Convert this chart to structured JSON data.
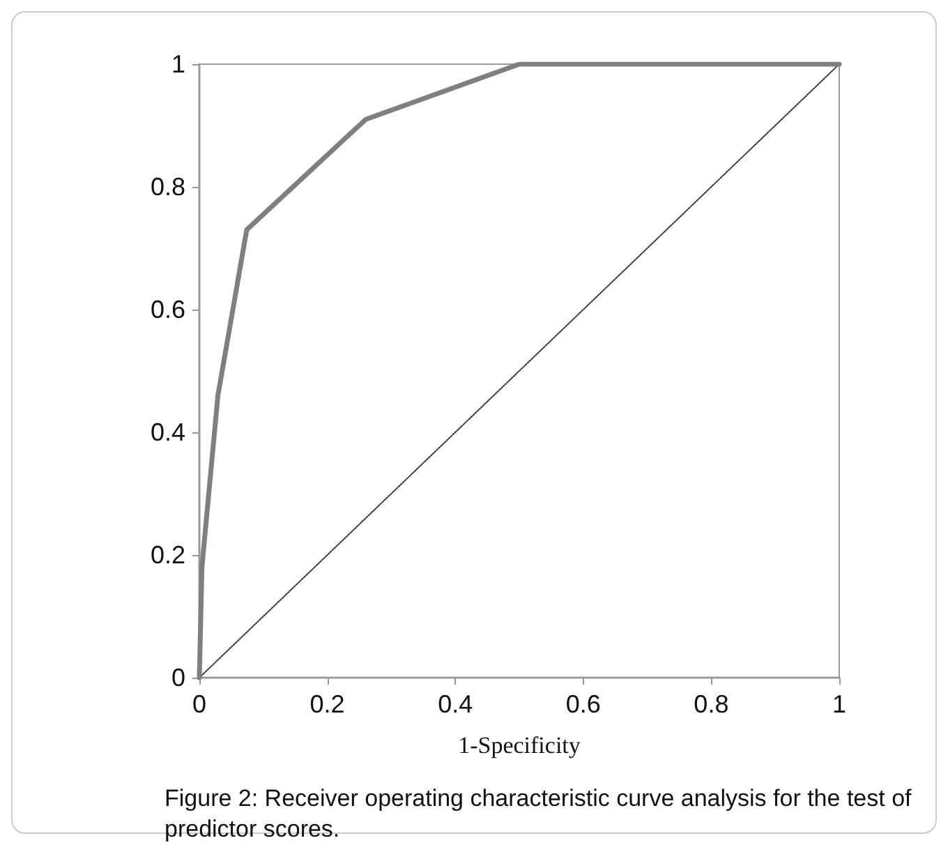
{
  "chart_data": {
    "type": "line",
    "xlabel": "1-Specificity",
    "annotations": [
      "Figure 2: Receiver operating characteristic curve analysis for the test of predictor scores."
    ],
    "xlim": [
      0,
      1
    ],
    "xticks": [
      0,
      0.2,
      0.4,
      0.6,
      0.8,
      1
    ],
    "ylim": [
      0,
      1
    ],
    "yticks": [
      0,
      0.2,
      0.4,
      0.6,
      0.8,
      1
    ],
    "grid": false,
    "marker": "none",
    "series": [
      {
        "color": "#7f7f7f",
        "line_style": "solid",
        "x": [
          0,
          0.004,
          0.029,
          0.074,
          0.26,
          0.5,
          1
        ],
        "values": [
          0,
          0.18,
          0.46,
          0.73,
          0.91,
          1,
          1
        ]
      },
      {
        "color": "#333333",
        "line_style": "dotted",
        "x": [
          0,
          1
        ],
        "values": [
          0,
          1
        ]
      }
    ]
  }
}
